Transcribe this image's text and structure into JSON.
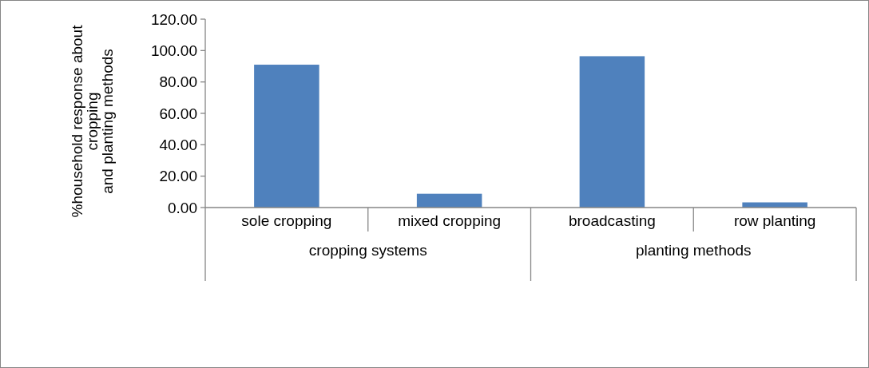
{
  "chart_data": {
    "type": "bar",
    "ylabel": "%household response about\ncropping\nand planting methods",
    "categories": [
      "sole cropping",
      "mixed cropping",
      "broadcasting",
      "row planting"
    ],
    "values": [
      91.0,
      8.8,
      96.4,
      3.3
    ],
    "color": "#4f81bd",
    "ylim": [
      0,
      120
    ],
    "yticks": [
      {
        "value": 0,
        "label": "0.00"
      },
      {
        "value": 20,
        "label": "20.00"
      },
      {
        "value": 40,
        "label": "40.00"
      },
      {
        "value": 60,
        "label": "60.00"
      },
      {
        "value": 80,
        "label": "80.00"
      },
      {
        "value": 100,
        "label": "100.00"
      },
      {
        "value": 120,
        "label": "120.00"
      }
    ],
    "annotations": [
      "cropping systems",
      "planting methods"
    ],
    "grid": false
  }
}
